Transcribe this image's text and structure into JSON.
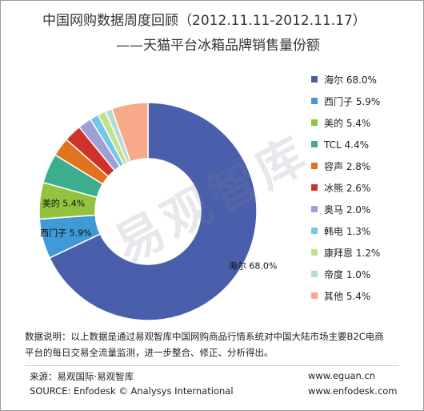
{
  "header": {
    "title_line1": "中国网购数据周度回顾（2012.11.11-2012.11.17）",
    "title_line2": "——天猫平台冰箱品牌销售量份额"
  },
  "watermark": "易观智库",
  "chart_data": {
    "type": "pie",
    "variant": "donut",
    "legend_position": "right",
    "slices": [
      {
        "name": "海尔",
        "value": 68.0,
        "label": "海尔 68.0%",
        "color": "#4a5fab",
        "show_on_chart": true
      },
      {
        "name": "西门子",
        "value": 5.9,
        "label": "西门子 5.9%",
        "color": "#3f9ad6",
        "show_on_chart": true
      },
      {
        "name": "美的",
        "value": 5.4,
        "label": "美的 5.4%",
        "color": "#93c33e",
        "show_on_chart": true
      },
      {
        "name": "TCL",
        "value": 4.4,
        "label": "TCL 4.4%",
        "color": "#3cae8e",
        "show_on_chart": false
      },
      {
        "name": "容声",
        "value": 2.8,
        "label": "容声 2.8%",
        "color": "#e0731d",
        "show_on_chart": false
      },
      {
        "name": "冰熊",
        "value": 2.6,
        "label": "冰熊 2.6%",
        "color": "#d0312b",
        "show_on_chart": false
      },
      {
        "name": "奥马",
        "value": 2.0,
        "label": "奥马 2.0%",
        "color": "#9d9fd6",
        "show_on_chart": false
      },
      {
        "name": "韩电",
        "value": 1.3,
        "label": "韩电 1.3%",
        "color": "#76c6ec",
        "show_on_chart": false
      },
      {
        "name": "康拜恩",
        "value": 1.2,
        "label": "康拜恩 1.2%",
        "color": "#c3e18c",
        "show_on_chart": false
      },
      {
        "name": "帝度",
        "value": 1.0,
        "label": "帝度 1.0%",
        "color": "#b2ddd5",
        "show_on_chart": false
      },
      {
        "name": "其他",
        "value": 5.4,
        "label": "其他 5.4%",
        "color": "#f7a98a",
        "show_on_chart": false
      }
    ]
  },
  "footer": {
    "note_line1": "数据说明：以上数据是通过易观智库中国网购商品行情系统对中国大陆市场主要B2C电商",
    "note_line2": "平台的每日交易全流量监测，进一步整合、修正、分析得出。",
    "source_cn": "来源：易观国际·易观智库",
    "source_en": "SOURCE: Enfodesk © Analysys International",
    "url1": "www.eguan.cn",
    "url2": "www.enfodesk.com"
  }
}
